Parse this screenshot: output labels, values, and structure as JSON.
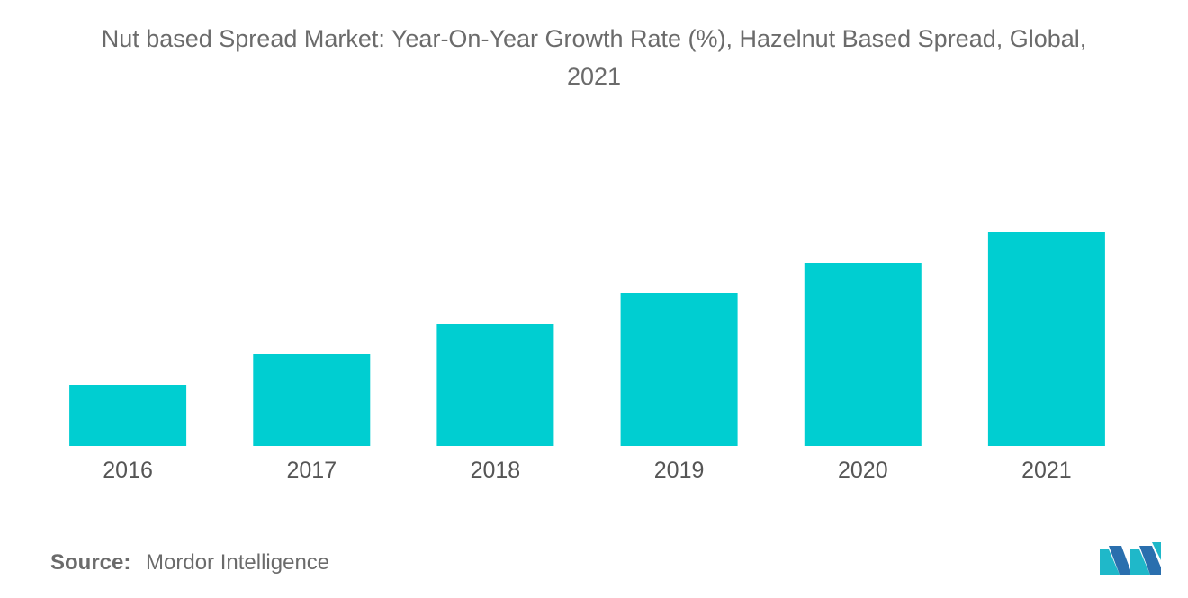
{
  "header": {
    "title_line1": "Nut based Spread Market: Year-On-Year Growth Rate (%), Hazelnut Based Spread, Global,",
    "title_line2": "2021"
  },
  "footer": {
    "source_label": "Source:",
    "source_value": "Mordor Intelligence",
    "logo_icon": "mordor-intelligence-logo-icon"
  },
  "chart_data": {
    "type": "bar",
    "title": "Nut based Spread Market: Year-On-Year Growth Rate (%), Hazelnut Based Spread, Global, 2021",
    "categories": [
      "2016",
      "2017",
      "2018",
      "2019",
      "2020",
      "2021"
    ],
    "values": [
      1.0,
      1.5,
      2.0,
      2.5,
      3.0,
      3.5
    ],
    "xlabel": "",
    "ylabel": "",
    "ylim": [
      0,
      3.5
    ],
    "grid": false,
    "legend": "none",
    "bar_color": "#00ced1",
    "tick_color": "#555555"
  }
}
